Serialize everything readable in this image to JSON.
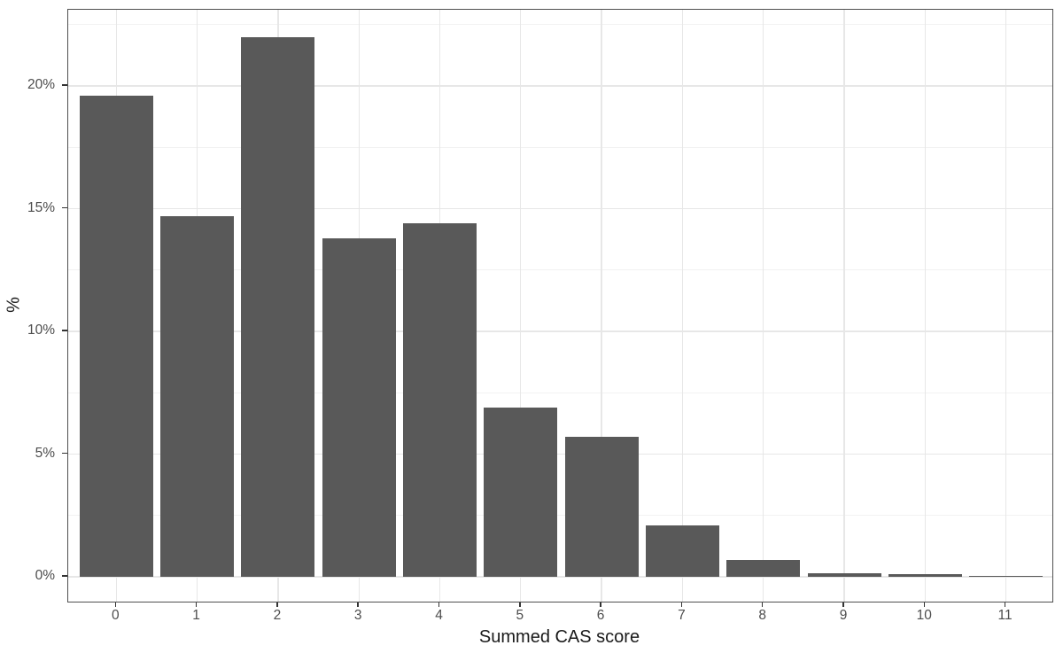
{
  "chart_data": {
    "type": "bar",
    "title": "",
    "xlabel": "Summed CAS score",
    "ylabel": "%",
    "categories": [
      "0",
      "1",
      "2",
      "3",
      "4",
      "5",
      "6",
      "7",
      "8",
      "9",
      "10",
      "11"
    ],
    "values": [
      19.6,
      14.7,
      22.0,
      13.8,
      14.4,
      6.9,
      5.7,
      2.1,
      0.7,
      0.15,
      0.1,
      0.03
    ],
    "y_axis": {
      "ticks": [
        0,
        5,
        10,
        15,
        20
      ],
      "tick_labels": [
        "0%",
        "5%",
        "10%",
        "15%",
        "20%"
      ],
      "minor_ticks": [
        2.5,
        7.5,
        12.5,
        17.5,
        22.5
      ],
      "range": [
        -1.0,
        23.1
      ]
    },
    "grid": "major-and-minor",
    "legend": "none",
    "colors": {
      "bar_fill": "#595959",
      "panel_border": "#4f4f4f",
      "grid_major": "#e7e7e7",
      "grid_minor": "#f2f2f2",
      "tick_mark": "#333333",
      "tick_label": "#4d4d4d",
      "axis_title": "#1a1a1a",
      "background": "#ffffff"
    }
  }
}
